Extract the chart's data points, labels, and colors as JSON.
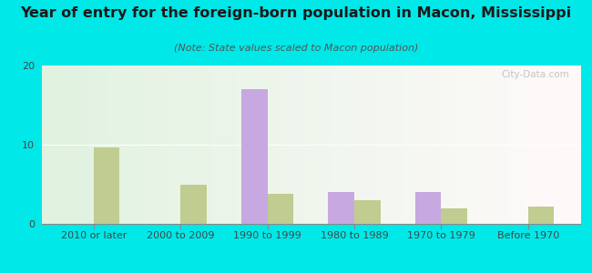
{
  "title": "Year of entry for the foreign-born population in Macon, Mississippi",
  "subtitle": "(Note: State values scaled to Macon population)",
  "categories": [
    "2010 or later",
    "2000 to 2009",
    "1990 to 1999",
    "1980 to 1989",
    "1970 to 1979",
    "Before 1970"
  ],
  "macon_values": [
    0,
    0,
    17,
    4,
    4,
    0
  ],
  "mississippi_values": [
    9.7,
    5,
    3.8,
    3,
    2,
    2.2
  ],
  "macon_color": "#c8a8e0",
  "mississippi_color": "#c0cc90",
  "background_outer": "#00e8e8",
  "ylim": [
    0,
    20
  ],
  "yticks": [
    0,
    10,
    20
  ],
  "bar_width": 0.3,
  "title_fontsize": 11.5,
  "subtitle_fontsize": 8,
  "tick_fontsize": 8,
  "legend_fontsize": 9,
  "watermark_text": "City-Data.com"
}
